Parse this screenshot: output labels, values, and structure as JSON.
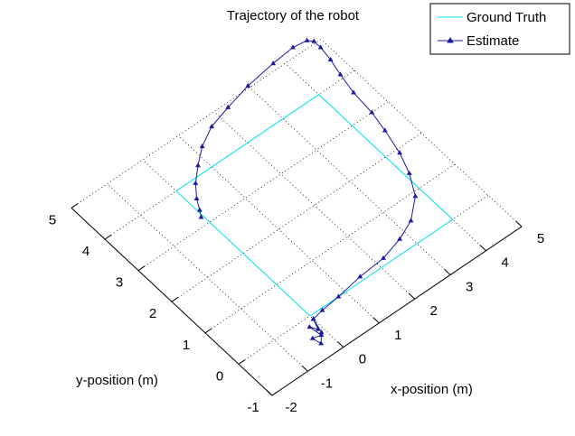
{
  "chart_data": {
    "type": "line",
    "title": "Trajectory of the robot",
    "xlabel": "x-position (m)",
    "ylabel": "y-position (m)",
    "xlim": [
      -2,
      5
    ],
    "ylim": [
      -1,
      5
    ],
    "x_ticks": [
      "-2",
      "-1",
      "0",
      "1",
      "2",
      "3",
      "4",
      "5"
    ],
    "y_ticks": [
      "-1",
      "0",
      "1",
      "2",
      "3",
      "4",
      "5"
    ],
    "grid": true,
    "legend_position": "top-right",
    "series": [
      {
        "name": "Ground Truth",
        "color": "#00e5ee",
        "marker": "none",
        "x": [
          0,
          4,
          4,
          0,
          0
        ],
        "y": [
          0,
          0,
          4,
          4,
          0
        ]
      },
      {
        "name": "Estimate",
        "color": "#1a1aa0",
        "marker": "triangle",
        "x": [
          0.0,
          -0.1,
          -0.2,
          -0.15,
          -0.35,
          -0.3,
          -0.1,
          0.0,
          0.3,
          0.8,
          1.5,
          2.2,
          2.8,
          3.3,
          3.8,
          4.1,
          4.3,
          4.45,
          4.55,
          4.6,
          4.7,
          4.8,
          4.85,
          4.85,
          4.75,
          4.4,
          3.8,
          3.0,
          2.3,
          1.7,
          1.2,
          0.8,
          0.45,
          0.2,
          0.05,
          -0.05
        ],
        "y": [
          -0.1,
          -0.35,
          -0.2,
          -0.5,
          -0.45,
          -0.65,
          -0.45,
          -0.1,
          -0.05,
          0.0,
          0.1,
          0.15,
          0.3,
          0.5,
          0.9,
          1.4,
          1.9,
          2.5,
          3.0,
          3.6,
          4.1,
          4.5,
          4.85,
          5.05,
          5.15,
          5.2,
          5.15,
          5.05,
          4.9,
          4.75,
          4.5,
          4.2,
          3.9,
          3.6,
          3.35,
          3.2
        ]
      }
    ]
  }
}
